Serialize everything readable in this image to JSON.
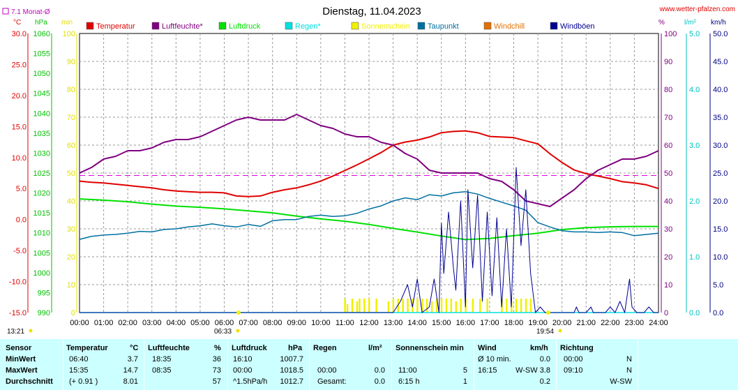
{
  "header": {
    "title": "Dienstag, 11.04.2023",
    "website": "www.wetter-pfalzen.com",
    "monat_label": "7.1 Monat-Ø"
  },
  "axis_units": {
    "temp": "°C",
    "hpa": "hPa",
    "min": "min",
    "pct": "%",
    "lm2": "l/m²",
    "kmh": "km/h"
  },
  "legend": [
    {
      "label": "Temperatur",
      "color": "#e00000"
    },
    {
      "label": "Luftfeuchte*",
      "color": "#800080"
    },
    {
      "label": "Luftdruck",
      "color": "#00e000"
    },
    {
      "label": "Regen*",
      "color": "#00e0e0"
    },
    {
      "label": "Sonnenschein",
      "color": "#f0f000"
    },
    {
      "label": "Taupunkt",
      "color": "#0070a0"
    },
    {
      "label": "Windchill",
      "color": "#e07000"
    },
    {
      "label": "Windböen",
      "color": "#000090"
    }
  ],
  "markers": {
    "sunrise_time": "06:33",
    "sunset_time": "19:54",
    "left_time": "13:21"
  },
  "chart_data": {
    "type": "line",
    "x_unit": "hour",
    "xlim": [
      0,
      24
    ],
    "x_ticks": [
      "00:00",
      "01:00",
      "02:00",
      "03:00",
      "04:00",
      "05:00",
      "06:00",
      "07:00",
      "08:00",
      "09:00",
      "10:00",
      "11:00",
      "12:00",
      "13:00",
      "14:00",
      "15:00",
      "16:00",
      "17:00",
      "18:00",
      "19:00",
      "20:00",
      "21:00",
      "22:00",
      "23:00",
      "24:00"
    ],
    "axes": {
      "temp": {
        "range": [
          -15,
          30
        ],
        "ticks": [
          "30.0",
          "25.0",
          "20.0",
          "15.0",
          "10.0",
          "5.0",
          "0.0",
          "-5.0",
          "-10.0",
          "-15.0"
        ],
        "color": "#e00000"
      },
      "hpa": {
        "range": [
          990,
          1060
        ],
        "ticks": [
          "1060",
          "1055",
          "1050",
          "1045",
          "1040",
          "1035",
          "1030",
          "1025",
          "1020",
          "1015",
          "1010",
          "1005",
          "1000",
          "995",
          "990"
        ],
        "color": "#00c000"
      },
      "min": {
        "range": [
          0,
          100
        ],
        "ticks": [
          "100",
          "90",
          "80",
          "70",
          "60",
          "50",
          "40",
          "30",
          "20",
          "10",
          "0"
        ],
        "color": "#e0e000"
      },
      "pct": {
        "range": [
          0,
          100
        ],
        "ticks": [
          "100",
          "90",
          "80",
          "70",
          "60",
          "50",
          "40",
          "30",
          "20",
          "10",
          "0"
        ],
        "color": "#800080"
      },
      "lm2": {
        "range": [
          0,
          5
        ],
        "ticks": [
          "5.0",
          "4.0",
          "3.0",
          "2.0",
          "1.0",
          "0.0"
        ],
        "color": "#00c0c0"
      },
      "kmh": {
        "range": [
          0,
          50
        ],
        "ticks": [
          "50.0",
          "45.0",
          "40.0",
          "35.0",
          "30.0",
          "25.0",
          "20.0",
          "15.0",
          "10.0",
          "5.0",
          "0.0"
        ],
        "color": "#000080"
      }
    },
    "monthly_avg_temp": 7.1,
    "series": [
      {
        "name": "Temperatur",
        "axis": "temp",
        "color": "#e00000",
        "x": [
          0,
          0.5,
          1,
          1.5,
          2,
          2.5,
          3,
          3.5,
          4,
          4.5,
          5,
          5.5,
          6,
          6.5,
          7,
          7.5,
          8,
          8.5,
          9,
          9.5,
          10,
          10.5,
          11,
          11.5,
          12,
          12.5,
          13,
          13.5,
          14,
          14.5,
          15,
          15.5,
          16,
          16.5,
          17,
          17.5,
          18,
          18.5,
          19,
          19.5,
          20,
          20.5,
          21,
          21.5,
          22,
          22.5,
          23,
          23.5,
          24
        ],
        "y": [
          6.2,
          6.0,
          5.9,
          5.7,
          5.5,
          5.3,
          5.1,
          4.8,
          4.6,
          4.5,
          4.4,
          4.4,
          4.3,
          3.8,
          3.7,
          3.8,
          4.4,
          4.8,
          5.1,
          5.6,
          6.2,
          7.0,
          7.9,
          8.8,
          9.8,
          10.8,
          12.0,
          12.5,
          12.8,
          13.3,
          14.0,
          14.2,
          14.3,
          14.0,
          13.4,
          13.3,
          13.2,
          12.7,
          12.2,
          10.6,
          9.2,
          8.0,
          7.4,
          7.0,
          6.6,
          6.1,
          5.9,
          5.6,
          5.0
        ]
      },
      {
        "name": "Luftfeuchte*",
        "axis": "pct",
        "color": "#800080",
        "x": [
          0,
          0.5,
          1,
          1.5,
          2,
          2.5,
          3,
          3.5,
          4,
          4.5,
          5,
          5.5,
          6,
          6.5,
          7,
          7.5,
          8,
          8.5,
          9,
          9.5,
          10,
          10.5,
          11,
          11.5,
          12,
          12.5,
          13,
          13.5,
          14,
          14.5,
          15,
          15.5,
          16,
          16.5,
          17,
          17.5,
          18,
          18.5,
          19,
          19.5,
          20,
          20.5,
          21,
          21.5,
          22,
          22.5,
          23,
          23.5,
          24
        ],
        "y": [
          50,
          52,
          55,
          56,
          58,
          58,
          59,
          61,
          62,
          62,
          63,
          65,
          67,
          69,
          70,
          69,
          69,
          69,
          71,
          69,
          67,
          66,
          64,
          63,
          63,
          61,
          60,
          57,
          55,
          51,
          50,
          50,
          50,
          50,
          48,
          47,
          44,
          40,
          39,
          38,
          41,
          44,
          48,
          51,
          53,
          55,
          55,
          56,
          58
        ]
      },
      {
        "name": "Luftdruck",
        "axis": "hpa",
        "color": "#00e000",
        "x": [
          0,
          1,
          2,
          3,
          4,
          5,
          6,
          7,
          8,
          9,
          10,
          11,
          12,
          13,
          14,
          15,
          16,
          17,
          18,
          19,
          20,
          21,
          22,
          23,
          24
        ],
        "y": [
          1018.5,
          1018.2,
          1017.8,
          1017.2,
          1016.7,
          1016.4,
          1016.0,
          1015.5,
          1015.0,
          1014.2,
          1013.5,
          1012.9,
          1012.1,
          1011.1,
          1010.2,
          1009.2,
          1008.3,
          1008.6,
          1009.3,
          1009.9,
          1010.8,
          1011.3,
          1011.5,
          1011.6,
          1011.6
        ]
      },
      {
        "name": "Taupunkt",
        "axis": "temp",
        "color": "#0070a0",
        "x": [
          0,
          0.5,
          1,
          1.5,
          2,
          2.5,
          3,
          3.5,
          4,
          4.5,
          5,
          5.5,
          6,
          6.5,
          7,
          7.5,
          8,
          8.5,
          9,
          9.5,
          10,
          10.5,
          11,
          11.5,
          12,
          12.5,
          13,
          13.5,
          14,
          14.5,
          15,
          15.5,
          16,
          16.5,
          17,
          17.5,
          18,
          18.5,
          19,
          19.5,
          20,
          20.5,
          21,
          21.5,
          22,
          22.5,
          23,
          23.5,
          24
        ],
        "y": [
          -3.2,
          -2.7,
          -2.5,
          -2.4,
          -2.2,
          -1.9,
          -2.0,
          -1.6,
          -1.5,
          -1.2,
          -1.0,
          -0.7,
          -1.0,
          -1.2,
          -0.8,
          -1.1,
          -0.2,
          0.0,
          0.0,
          0.5,
          0.7,
          0.5,
          0.6,
          1.0,
          1.7,
          2.2,
          3.0,
          3.5,
          3.2,
          4.0,
          3.8,
          4.3,
          4.5,
          4.1,
          3.4,
          2.8,
          2.2,
          1.5,
          -0.5,
          -1.2,
          -1.8,
          -2.0,
          -2.0,
          -2.1,
          -2.0,
          -2.1,
          -2.6,
          -2.4,
          -2.2
        ]
      },
      {
        "name": "Windböen",
        "axis": "kmh",
        "color": "#000090",
        "x": [
          0,
          12.5,
          13.0,
          13.3,
          13.6,
          13.8,
          14.0,
          14.2,
          14.5,
          14.7,
          14.9,
          15.0,
          15.1,
          15.3,
          15.5,
          15.6,
          15.8,
          16.0,
          16.1,
          16.3,
          16.5,
          16.7,
          16.9,
          17.1,
          17.3,
          17.5,
          17.7,
          17.9,
          18.1,
          18.3,
          18.5,
          18.7,
          18.9,
          19.1,
          19.3,
          19.5,
          19.7,
          20.2,
          20.5,
          20.6,
          20.7,
          21.0,
          21.2,
          21.3,
          21.5,
          21.8,
          22.0,
          22.2,
          22.4,
          22.6,
          22.8,
          22.9,
          23.1,
          23.4,
          23.6,
          23.8,
          24
        ],
        "y": [
          0,
          0,
          0,
          2,
          5,
          1,
          6,
          0,
          1,
          6,
          0,
          16,
          7,
          18,
          8,
          4,
          20,
          1,
          22,
          8,
          21,
          2,
          18,
          3,
          17,
          1,
          15,
          1,
          26,
          12,
          22,
          7,
          0,
          1,
          0,
          0,
          0,
          0,
          0,
          1,
          0,
          0,
          1,
          0,
          0,
          0,
          1,
          0,
          2,
          0,
          6,
          1,
          0,
          0,
          1,
          0,
          0
        ]
      }
    ],
    "sunshine_minutes": {
      "color": "#f0f000",
      "x": [
        11.0,
        11.1,
        11.3,
        11.5,
        11.6,
        11.8,
        12.0,
        12.3,
        12.8,
        13.0,
        13.2,
        13.4,
        13.6,
        13.8,
        14.0,
        14.2,
        14.4,
        14.6,
        14.8,
        15.0,
        15.2,
        15.4,
        15.6,
        15.8,
        16.0,
        16.3,
        16.6,
        16.9,
        17.5,
        17.7,
        17.9,
        18.1,
        18.3,
        18.5,
        18.7
      ],
      "y": [
        5,
        3,
        5,
        4,
        5,
        5,
        5,
        5,
        4,
        5,
        5,
        5,
        5,
        5,
        5,
        5,
        5,
        4,
        5,
        5,
        5,
        5,
        4,
        5,
        5,
        5,
        5,
        5,
        5,
        5,
        4,
        5,
        5,
        5,
        5
      ]
    },
    "rain_lm2": 0.0
  },
  "table": {
    "headers": {
      "sensor": "Sensor",
      "temp": "Temperatur",
      "temp_unit": "°C",
      "hum": "Luftfeuchte",
      "hum_unit": "%",
      "press": "Luftdruck",
      "press_unit": "hPa",
      "rain": "Regen",
      "rain_unit": "l/m²",
      "sun": "Sonnenschein min",
      "wind": "Wind",
      "wind_unit": "km/h",
      "dir": "Richtung"
    },
    "rows": [
      {
        "label": "MinWert",
        "temp_time": "06:40",
        "temp_val": "3.7",
        "hum_time": "18:35",
        "hum_val": "36",
        "press_time": "16:10",
        "press_val": "1007.7",
        "rain_time": "",
        "rain_val": "",
        "sun_time": "",
        "sun_val": "",
        "wind_time": "Ø 10 min.",
        "wind_val": "0.0",
        "dir_time": "00:00",
        "dir_val": "N"
      },
      {
        "label": "MaxWert",
        "temp_time": "15:35",
        "temp_val": "14.7",
        "hum_time": "08:35",
        "hum_val": "73",
        "press_time": "00:00",
        "press_val": "1018.5",
        "rain_time": "00:00",
        "rain_val": "0.0",
        "sun_time": "11:00",
        "sun_val": "5",
        "wind_time": "16:15",
        "wind_val": "W-SW 3.8",
        "dir_time": "09:10",
        "dir_val": "N"
      },
      {
        "label": "Durchschnitt",
        "temp_time": "(+ 0.91 )",
        "temp_val": "8.01",
        "hum_time": "",
        "hum_val": "57",
        "press_time": "^1.5hPa/h",
        "press_val": "1012.7",
        "rain_time": "Gesamt:",
        "rain_val": "0.0",
        "sun_time": "6:15 h",
        "sun_val": "1",
        "wind_time": "",
        "wind_val": "0.2",
        "dir_time": "",
        "dir_val": "W-SW"
      }
    ]
  }
}
